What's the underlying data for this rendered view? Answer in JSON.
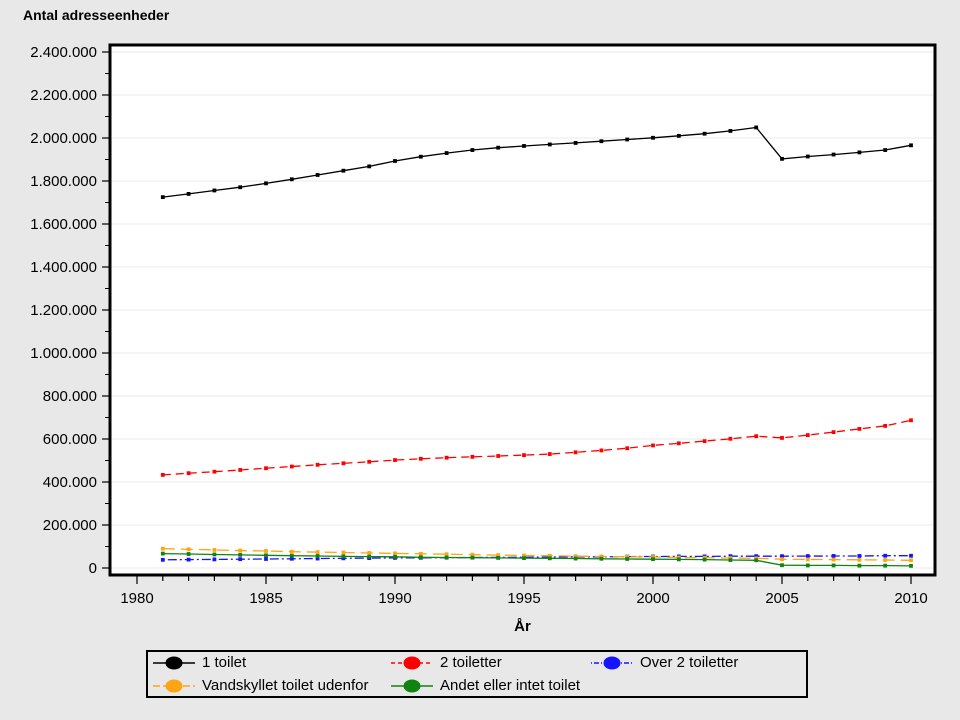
{
  "page": {
    "background": "#E8E8E8"
  },
  "header": {
    "title": "Antal adresseenheder"
  },
  "chart_data": {
    "type": "line",
    "title": "Antal adresseenheder",
    "xlabel": "År",
    "ylabel": "Antal adresseenheder",
    "xlim": [
      1979,
      2011
    ],
    "ylim": [
      0,
      2400000
    ],
    "x_major_ticks": [
      1980,
      1985,
      1990,
      1995,
      2000,
      2005,
      2010
    ],
    "x_minor_step": 1,
    "y_major_step": 200000,
    "y_minor_step": 100000,
    "y_tick_labels": [
      "0",
      "200.000",
      "400.000",
      "600.000",
      "800.000",
      "1.000.000",
      "1.200.000",
      "1.400.000",
      "1.600.000",
      "1.800.000",
      "2.000.000",
      "2.200.000",
      "2.400.000"
    ],
    "grid": "horizontal-major",
    "legend_position": "bottom-box",
    "plot_background": "#FFFFFF",
    "gridline_color": "#EBEBEB",
    "x": [
      1981,
      1982,
      1983,
      1984,
      1985,
      1986,
      1987,
      1988,
      1989,
      1990,
      1991,
      1992,
      1993,
      1994,
      1995,
      1996,
      1997,
      1998,
      1999,
      2000,
      2001,
      2002,
      2003,
      2004,
      2005,
      2006,
      2007,
      2008,
      2009,
      2010
    ],
    "series": [
      {
        "name": "1 toilet",
        "color": "#000000",
        "dash": "solid",
        "values": [
          1725000,
          1740000,
          1756000,
          1771000,
          1789000,
          1808000,
          1828000,
          1848000,
          1868000,
          1893000,
          1913000,
          1930000,
          1944000,
          1955000,
          1963000,
          1970000,
          1977000,
          1985000,
          1993000,
          2001000,
          2010000,
          2020000,
          2033000,
          2049000,
          1903000,
          1914000,
          1923000,
          1933000,
          1944000,
          1966000
        ]
      },
      {
        "name": "2 toiletter",
        "color": "#FF0000",
        "dash": "dash",
        "values": [
          433000,
          441000,
          448000,
          456000,
          464000,
          472000,
          480000,
          487000,
          494000,
          502000,
          508000,
          513000,
          517000,
          521000,
          525000,
          530000,
          538000,
          547000,
          557000,
          570000,
          580000,
          590000,
          601000,
          613000,
          605000,
          618000,
          632000,
          647000,
          661000,
          687000
        ]
      },
      {
        "name": "Over 2 toiletter",
        "color": "#1414FF",
        "dash": "dashdot",
        "values": [
          38000,
          39000,
          40000,
          41000,
          42000,
          43000,
          44000,
          45000,
          46000,
          47000,
          47500,
          48000,
          49000,
          49500,
          50000,
          51000,
          51500,
          52000,
          53000,
          53500,
          54000,
          54000,
          55000,
          55000,
          55000,
          55500,
          56000,
          56000,
          57000,
          57000
        ]
      },
      {
        "name": "Vandskyllet toilet udenfor",
        "color": "#FFA414",
        "dash": "longdash",
        "values": [
          90000,
          87000,
          84000,
          81000,
          79000,
          76000,
          74000,
          72000,
          70000,
          68000,
          66000,
          64000,
          62000,
          60000,
          58000,
          57000,
          55000,
          54000,
          52000,
          51000,
          49000,
          48000,
          46000,
          45000,
          41000,
          40000,
          39000,
          38000,
          37000,
          36000
        ]
      },
      {
        "name": "Andet eller intet toilet",
        "color": "#108410",
        "dash": "solid",
        "values": [
          67000,
          65000,
          63000,
          61000,
          59000,
          57000,
          56000,
          54000,
          53000,
          52000,
          50000,
          49000,
          48000,
          47000,
          46000,
          45000,
          44000,
          43000,
          42000,
          41000,
          40000,
          39000,
          37000,
          36000,
          13000,
          12000,
          12000,
          11000,
          11000,
          10000
        ]
      }
    ]
  }
}
